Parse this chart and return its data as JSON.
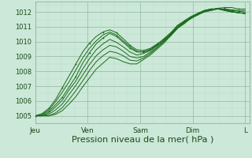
{
  "bg_color": "#cce8d8",
  "grid_color_minor": "#b8d8c8",
  "grid_color_major": "#90b8a0",
  "line_color": "#1a6b1a",
  "xlabel": "Pression niveau de la mer( hPa )",
  "xlabel_fontsize": 8,
  "tick_labels_x": [
    "Jeu",
    "Ven",
    "Sam",
    "Dim",
    "L"
  ],
  "tick_positions_x": [
    0,
    24,
    48,
    72,
    96
  ],
  "ylim": [
    1004.5,
    1012.7
  ],
  "xlim": [
    0,
    98
  ],
  "yticks": [
    1005,
    1006,
    1007,
    1008,
    1009,
    1010,
    1011,
    1012
  ],
  "total_hours": 96,
  "series": [
    [
      1005.0,
      1005.15,
      1005.5,
      1006.1,
      1006.9,
      1007.7,
      1008.5,
      1009.3,
      1009.9,
      1010.35,
      1010.65,
      1010.8,
      1010.6,
      1010.2,
      1009.75,
      1009.45,
      1009.4,
      1009.55,
      1009.85,
      1010.15,
      1010.55,
      1011.05,
      1011.35,
      1011.65,
      1011.85,
      1012.05,
      1012.15,
      1012.25,
      1012.3,
      1012.3,
      1012.2,
      1012.2
    ],
    [
      1005.0,
      1005.1,
      1005.4,
      1005.95,
      1006.6,
      1007.3,
      1008.1,
      1008.9,
      1009.55,
      1010.05,
      1010.45,
      1010.65,
      1010.45,
      1010.05,
      1009.65,
      1009.35,
      1009.3,
      1009.45,
      1009.75,
      1010.05,
      1010.45,
      1010.95,
      1011.25,
      1011.55,
      1011.8,
      1012.0,
      1012.1,
      1012.2,
      1012.2,
      1012.15,
      1012.1,
      1012.1
    ],
    [
      1005.0,
      1005.05,
      1005.3,
      1005.75,
      1006.25,
      1006.95,
      1007.65,
      1008.55,
      1009.25,
      1009.85,
      1010.25,
      1010.55,
      1010.35,
      1009.95,
      1009.55,
      1009.3,
      1009.3,
      1009.5,
      1009.8,
      1010.2,
      1010.6,
      1011.1,
      1011.4,
      1011.7,
      1011.9,
      1012.1,
      1012.2,
      1012.2,
      1012.2,
      1012.1,
      1012.05,
      1012.0
    ],
    [
      1005.0,
      1005.0,
      1005.2,
      1005.6,
      1006.05,
      1006.75,
      1007.35,
      1008.15,
      1008.85,
      1009.45,
      1009.85,
      1010.15,
      1009.95,
      1009.65,
      1009.3,
      1009.1,
      1009.2,
      1009.4,
      1009.7,
      1010.1,
      1010.5,
      1011.0,
      1011.3,
      1011.6,
      1011.9,
      1012.1,
      1012.2,
      1012.2,
      1012.1,
      1012.0,
      1011.95,
      1011.9
    ],
    [
      1005.0,
      1005.0,
      1005.1,
      1005.4,
      1005.8,
      1006.45,
      1007.05,
      1007.75,
      1008.45,
      1009.05,
      1009.45,
      1009.75,
      1009.65,
      1009.35,
      1009.0,
      1008.9,
      1009.0,
      1009.3,
      1009.6,
      1010.0,
      1010.4,
      1010.9,
      1011.3,
      1011.6,
      1011.9,
      1012.1,
      1012.2,
      1012.2,
      1012.1,
      1012.0,
      1011.95,
      1011.9
    ],
    [
      1005.0,
      1005.0,
      1005.0,
      1005.2,
      1005.55,
      1006.1,
      1006.7,
      1007.35,
      1008.05,
      1008.65,
      1009.05,
      1009.35,
      1009.25,
      1009.05,
      1008.75,
      1008.7,
      1008.9,
      1009.2,
      1009.6,
      1010.0,
      1010.4,
      1010.9,
      1011.3,
      1011.6,
      1011.85,
      1012.05,
      1012.15,
      1012.25,
      1012.15,
      1012.05,
      1011.95,
      1011.9
    ],
    [
      1005.0,
      1005.0,
      1005.0,
      1005.1,
      1005.35,
      1005.8,
      1006.3,
      1006.95,
      1007.55,
      1008.15,
      1008.55,
      1008.95,
      1008.85,
      1008.65,
      1008.5,
      1008.5,
      1008.8,
      1009.1,
      1009.5,
      1009.9,
      1010.4,
      1010.9,
      1011.2,
      1011.6,
      1011.85,
      1012.05,
      1012.15,
      1012.25,
      1012.15,
      1012.05,
      1011.95,
      1011.9
    ]
  ],
  "marker_series": [
    0,
    2
  ],
  "marker_every": 2
}
